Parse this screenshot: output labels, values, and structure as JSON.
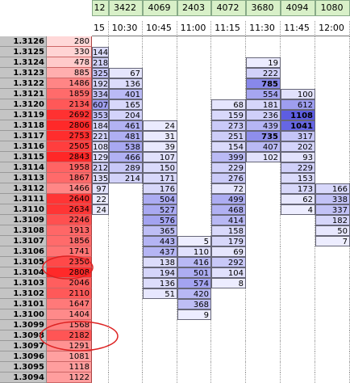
{
  "header": {
    "volumes": [
      "12",
      "3422",
      "4069",
      "2403",
      "4072",
      "3680",
      "4094",
      "1080"
    ],
    "times": [
      "15",
      "10:30",
      "10:45",
      "11:00",
      "11:15",
      "11:30",
      "11:45",
      "12:00"
    ]
  },
  "rows": [
    {
      "price": "1.3126",
      "volume": 280,
      "cells": [
        null,
        null,
        null,
        null,
        null,
        null,
        null,
        null
      ]
    },
    {
      "price": "1.3125",
      "volume": 330,
      "cells": [
        144,
        null,
        null,
        null,
        null,
        null,
        null,
        null
      ]
    },
    {
      "price": "1.3124",
      "volume": 478,
      "cells": [
        218,
        null,
        null,
        null,
        null,
        19,
        null,
        null
      ]
    },
    {
      "price": "1.3123",
      "volume": 885,
      "cells": [
        325,
        67,
        null,
        null,
        null,
        222,
        null,
        null
      ]
    },
    {
      "price": "1.3122",
      "volume": 1486,
      "cells": [
        192,
        136,
        null,
        null,
        null,
        785,
        null,
        null
      ]
    },
    {
      "price": "1.3121",
      "volume": 1859,
      "cells": [
        334,
        401,
        null,
        null,
        null,
        554,
        100,
        null
      ]
    },
    {
      "price": "1.3120",
      "volume": 2134,
      "cells": [
        607,
        165,
        null,
        null,
        68,
        181,
        612,
        null
      ]
    },
    {
      "price": "1.3119",
      "volume": 2692,
      "cells": [
        353,
        204,
        null,
        null,
        159,
        236,
        1108,
        null
      ]
    },
    {
      "price": "1.3118",
      "volume": 2806,
      "cells": [
        184,
        461,
        24,
        null,
        273,
        439,
        1041,
        null
      ]
    },
    {
      "price": "1.3117",
      "volume": 2753,
      "cells": [
        221,
        481,
        31,
        null,
        251,
        735,
        317,
        null
      ]
    },
    {
      "price": "1.3116",
      "volume": 2505,
      "cells": [
        108,
        538,
        39,
        null,
        154,
        407,
        202,
        null
      ]
    },
    {
      "price": "1.3115",
      "volume": 2843,
      "cells": [
        129,
        466,
        107,
        null,
        399,
        102,
        93,
        null
      ]
    },
    {
      "price": "1.3114",
      "volume": 1958,
      "cells": [
        212,
        289,
        150,
        null,
        229,
        null,
        229,
        null
      ]
    },
    {
      "price": "1.3113",
      "volume": 1867,
      "cells": [
        135,
        214,
        171,
        null,
        276,
        null,
        153,
        null
      ]
    },
    {
      "price": "1.3112",
      "volume": 1466,
      "cells": [
        97,
        null,
        176,
        null,
        72,
        null,
        173,
        166
      ]
    },
    {
      "price": "1.3111",
      "volume": 2640,
      "cells": [
        22,
        null,
        504,
        null,
        499,
        null,
        62,
        338
      ]
    },
    {
      "price": "1.3110",
      "volume": 2634,
      "cells": [
        24,
        null,
        527,
        null,
        468,
        null,
        4,
        337
      ]
    },
    {
      "price": "1.3109",
      "volume": 2246,
      "cells": [
        null,
        null,
        576,
        null,
        414,
        null,
        null,
        182
      ]
    },
    {
      "price": "1.3108",
      "volume": 1913,
      "cells": [
        null,
        null,
        365,
        null,
        158,
        null,
        null,
        50
      ]
    },
    {
      "price": "1.3107",
      "volume": 1856,
      "cells": [
        null,
        null,
        443,
        5,
        179,
        null,
        null,
        7
      ]
    },
    {
      "price": "1.3106",
      "volume": 1741,
      "cells": [
        null,
        null,
        437,
        110,
        69,
        null,
        null,
        null
      ]
    },
    {
      "price": "1.3105",
      "volume": 2350,
      "cells": [
        null,
        null,
        138,
        416,
        292,
        null,
        null,
        null
      ]
    },
    {
      "price": "1.3104",
      "volume": 2808,
      "cells": [
        null,
        null,
        194,
        501,
        104,
        null,
        null,
        null
      ]
    },
    {
      "price": "1.3103",
      "volume": 2046,
      "cells": [
        null,
        null,
        136,
        574,
        8,
        null,
        null,
        null
      ]
    },
    {
      "price": "1.3102",
      "volume": 2110,
      "cells": [
        null,
        null,
        51,
        420,
        null,
        null,
        null,
        null
      ]
    },
    {
      "price": "1.3101",
      "volume": 1647,
      "cells": [
        null,
        null,
        null,
        368,
        null,
        null,
        null,
        null
      ]
    },
    {
      "price": "1.3100",
      "volume": 1404,
      "cells": [
        null,
        null,
        null,
        9,
        null,
        null,
        null,
        null
      ]
    },
    {
      "price": "1.3099",
      "volume": 1568,
      "cells": [
        null,
        null,
        null,
        null,
        null,
        null,
        null,
        null
      ]
    },
    {
      "price": "1.3098",
      "volume": 2182,
      "cells": [
        null,
        null,
        null,
        null,
        null,
        null,
        null,
        null
      ]
    },
    {
      "price": "1.3097",
      "volume": 1291,
      "cells": [
        null,
        null,
        null,
        null,
        null,
        null,
        null,
        null
      ]
    },
    {
      "price": "1.3096",
      "volume": 1081,
      "cells": [
        null,
        null,
        null,
        null,
        null,
        null,
        null,
        null
      ]
    },
    {
      "price": "1.3095",
      "volume": 1118,
      "cells": [
        null,
        null,
        null,
        null,
        null,
        null,
        null,
        null
      ]
    },
    {
      "price": "1.3094",
      "volume": 1122,
      "cells": [
        null,
        null,
        null,
        null,
        null,
        null,
        null,
        null
      ]
    }
  ]
}
